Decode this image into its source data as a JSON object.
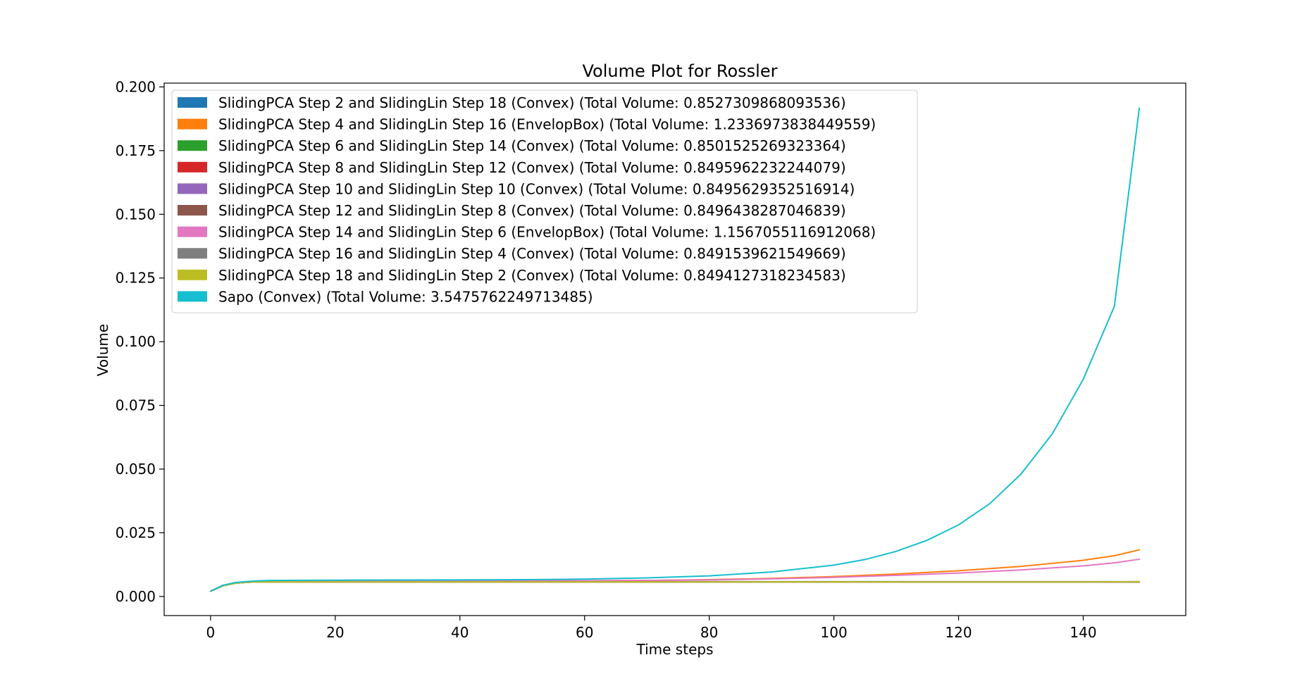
{
  "chart_data": {
    "type": "line",
    "title": "Volume Plot for Rossler",
    "xlabel": "Time steps",
    "ylabel": "Volume",
    "xlim": [
      -7.45,
      156.45
    ],
    "ylim": [
      -0.0075,
      0.2015
    ],
    "xticks": [
      0,
      20,
      40,
      60,
      80,
      100,
      120,
      140
    ],
    "yticks": [
      0.0,
      0.025,
      0.05,
      0.075,
      0.1,
      0.125,
      0.15,
      0.175,
      0.2
    ],
    "ytick_labels": [
      "0.000",
      "0.025",
      "0.050",
      "0.075",
      "0.100",
      "0.125",
      "0.150",
      "0.175",
      "0.200"
    ],
    "xtick_labels": [
      "0",
      "20",
      "40",
      "60",
      "80",
      "100",
      "120",
      "140"
    ],
    "grid": false,
    "legend_position": "top-left",
    "x_range": [
      0,
      149
    ],
    "series": [
      {
        "label": "SlidingPCA Step 2 and SlidingLin Step 18 (Convex) (Total Volume: 0.8527309868093536)",
        "color": "#1f77b4",
        "points": [
          [
            0,
            0.0021
          ],
          [
            2,
            0.0042
          ],
          [
            4,
            0.0052
          ],
          [
            6,
            0.0056
          ],
          [
            8,
            0.0058
          ],
          [
            10,
            0.0058
          ],
          [
            20,
            0.0058
          ],
          [
            40,
            0.0058
          ],
          [
            60,
            0.0058
          ],
          [
            80,
            0.0058
          ],
          [
            100,
            0.0058
          ],
          [
            120,
            0.0058
          ],
          [
            140,
            0.0058
          ],
          [
            149,
            0.0058
          ]
        ]
      },
      {
        "label": "SlidingPCA Step 4 and SlidingLin Step 16 (EnvelopBox) (Total Volume: 1.2336973838449559)",
        "color": "#ff7f0e",
        "points": [
          [
            0,
            0.0021
          ],
          [
            2,
            0.0042
          ],
          [
            4,
            0.0053
          ],
          [
            6,
            0.0058
          ],
          [
            8,
            0.006
          ],
          [
            10,
            0.0061
          ],
          [
            20,
            0.0061
          ],
          [
            40,
            0.0061
          ],
          [
            60,
            0.0062
          ],
          [
            70,
            0.0063
          ],
          [
            80,
            0.0066
          ],
          [
            90,
            0.0071
          ],
          [
            100,
            0.0078
          ],
          [
            110,
            0.0088
          ],
          [
            120,
            0.0101
          ],
          [
            130,
            0.0118
          ],
          [
            140,
            0.0142
          ],
          [
            145,
            0.016
          ],
          [
            149,
            0.0183
          ]
        ]
      },
      {
        "label": "SlidingPCA Step 6 and SlidingLin Step 14 (Convex) (Total Volume: 0.8501525269323364)",
        "color": "#2ca02c",
        "points": [
          [
            0,
            0.0021
          ],
          [
            2,
            0.0042
          ],
          [
            4,
            0.0052
          ],
          [
            6,
            0.0056
          ],
          [
            8,
            0.0057
          ],
          [
            10,
            0.0057
          ],
          [
            20,
            0.0057
          ],
          [
            40,
            0.0057
          ],
          [
            60,
            0.0057
          ],
          [
            80,
            0.0057
          ],
          [
            100,
            0.0057
          ],
          [
            120,
            0.0057
          ],
          [
            140,
            0.0057
          ],
          [
            149,
            0.0057
          ]
        ]
      },
      {
        "label": "SlidingPCA Step 8 and SlidingLin Step 12 (Convex) (Total Volume: 0.8495962232244079)",
        "color": "#d62728",
        "points": [
          [
            0,
            0.0021
          ],
          [
            2,
            0.0042
          ],
          [
            4,
            0.0052
          ],
          [
            6,
            0.0056
          ],
          [
            8,
            0.0057
          ],
          [
            10,
            0.0057
          ],
          [
            20,
            0.0057
          ],
          [
            40,
            0.0057
          ],
          [
            60,
            0.0057
          ],
          [
            80,
            0.0057
          ],
          [
            100,
            0.0057
          ],
          [
            120,
            0.0057
          ],
          [
            140,
            0.0057
          ],
          [
            149,
            0.0057
          ]
        ]
      },
      {
        "label": "SlidingPCA Step 10 and SlidingLin Step 10 (Convex) (Total Volume: 0.8495629352516914)",
        "color": "#9467bd",
        "points": [
          [
            0,
            0.0021
          ],
          [
            2,
            0.0042
          ],
          [
            4,
            0.0052
          ],
          [
            6,
            0.0056
          ],
          [
            8,
            0.0057
          ],
          [
            10,
            0.0057
          ],
          [
            20,
            0.0057
          ],
          [
            40,
            0.0057
          ],
          [
            60,
            0.0057
          ],
          [
            80,
            0.0057
          ],
          [
            100,
            0.0057
          ],
          [
            120,
            0.0057
          ],
          [
            140,
            0.0057
          ],
          [
            149,
            0.0057
          ]
        ]
      },
      {
        "label": "SlidingPCA Step 12 and SlidingLin Step 8 (Convex) (Total Volume: 0.8496438287046839)",
        "color": "#8c564b",
        "points": [
          [
            0,
            0.0021
          ],
          [
            2,
            0.0042
          ],
          [
            4,
            0.0052
          ],
          [
            6,
            0.0056
          ],
          [
            8,
            0.0057
          ],
          [
            10,
            0.0057
          ],
          [
            20,
            0.0057
          ],
          [
            40,
            0.0057
          ],
          [
            60,
            0.0057
          ],
          [
            80,
            0.0057
          ],
          [
            100,
            0.0057
          ],
          [
            120,
            0.0057
          ],
          [
            140,
            0.0057
          ],
          [
            149,
            0.0057
          ]
        ]
      },
      {
        "label": "SlidingPCA Step 14 and SlidingLin Step 6 (EnvelopBox) (Total Volume: 1.1567055116912068)",
        "color": "#e377c2",
        "points": [
          [
            0,
            0.0021
          ],
          [
            2,
            0.0042
          ],
          [
            4,
            0.0053
          ],
          [
            6,
            0.0058
          ],
          [
            8,
            0.006
          ],
          [
            10,
            0.0061
          ],
          [
            20,
            0.0061
          ],
          [
            40,
            0.0061
          ],
          [
            60,
            0.0062
          ],
          [
            70,
            0.0063
          ],
          [
            80,
            0.0065
          ],
          [
            90,
            0.0069
          ],
          [
            100,
            0.0075
          ],
          [
            110,
            0.0083
          ],
          [
            120,
            0.0092
          ],
          [
            130,
            0.0104
          ],
          [
            140,
            0.012
          ],
          [
            145,
            0.0132
          ],
          [
            149,
            0.0146
          ]
        ]
      },
      {
        "label": "SlidingPCA Step 16 and SlidingLin Step 4 (Convex) (Total Volume: 0.8491539621549669)",
        "color": "#7f7f7f",
        "points": [
          [
            0,
            0.0021
          ],
          [
            2,
            0.0042
          ],
          [
            4,
            0.0052
          ],
          [
            6,
            0.0056
          ],
          [
            8,
            0.0057
          ],
          [
            10,
            0.0057
          ],
          [
            20,
            0.0057
          ],
          [
            40,
            0.0057
          ],
          [
            60,
            0.0057
          ],
          [
            80,
            0.0057
          ],
          [
            100,
            0.0057
          ],
          [
            120,
            0.0057
          ],
          [
            140,
            0.0057
          ],
          [
            149,
            0.0057
          ]
        ]
      },
      {
        "label": "SlidingPCA Step 18 and SlidingLin Step 2 (Convex) (Total Volume: 0.8494127318234583)",
        "color": "#bcbd22",
        "points": [
          [
            0,
            0.0021
          ],
          [
            2,
            0.0042
          ],
          [
            4,
            0.0052
          ],
          [
            6,
            0.0056
          ],
          [
            8,
            0.0057
          ],
          [
            10,
            0.0057
          ],
          [
            20,
            0.0057
          ],
          [
            40,
            0.0057
          ],
          [
            60,
            0.0057
          ],
          [
            80,
            0.0057
          ],
          [
            100,
            0.0057
          ],
          [
            120,
            0.0057
          ],
          [
            140,
            0.0057
          ],
          [
            149,
            0.0058
          ]
        ]
      },
      {
        "label": "Sapo (Convex) (Total Volume: 3.5475762249713485)",
        "color": "#17becf",
        "points": [
          [
            0,
            0.0021
          ],
          [
            2,
            0.0044
          ],
          [
            4,
            0.0055
          ],
          [
            6,
            0.0059
          ],
          [
            8,
            0.0062
          ],
          [
            10,
            0.0063
          ],
          [
            20,
            0.0064
          ],
          [
            40,
            0.0065
          ],
          [
            50,
            0.0066
          ],
          [
            60,
            0.0068
          ],
          [
            70,
            0.0073
          ],
          [
            80,
            0.0081
          ],
          [
            90,
            0.0096
          ],
          [
            100,
            0.0123
          ],
          [
            105,
            0.0145
          ],
          [
            110,
            0.0177
          ],
          [
            115,
            0.0221
          ],
          [
            120,
            0.0281
          ],
          [
            125,
            0.0364
          ],
          [
            130,
            0.048
          ],
          [
            135,
            0.0637
          ],
          [
            140,
            0.0852
          ],
          [
            145,
            0.1139
          ],
          [
            149,
            0.1917
          ]
        ]
      }
    ]
  }
}
